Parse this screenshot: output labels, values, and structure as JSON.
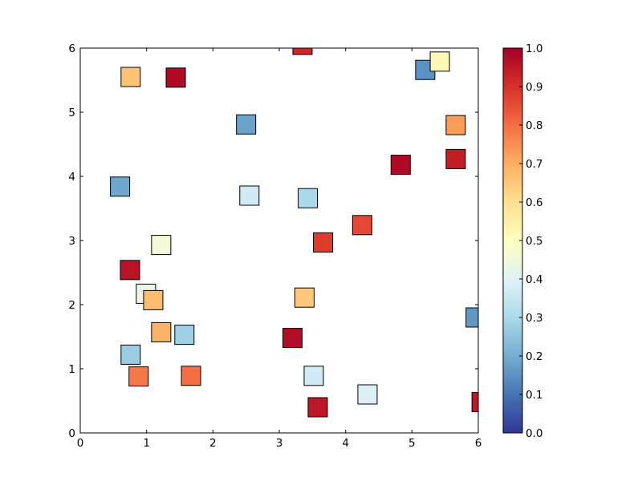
{
  "chart_data": {
    "type": "scatter",
    "marker": "square",
    "title": "",
    "xlabel": "",
    "ylabel": "",
    "xlim": [
      0,
      6
    ],
    "ylim": [
      0,
      6
    ],
    "xticks": [
      "0",
      "1",
      "2",
      "3",
      "4",
      "5",
      "6"
    ],
    "yticks": [
      "0",
      "1",
      "2",
      "3",
      "4",
      "5",
      "6"
    ],
    "grid": false,
    "points": [
      {
        "x": 3.35,
        "y": 6.05,
        "c": 0.92
      },
      {
        "x": 0.76,
        "y": 5.55,
        "c": 0.66
      },
      {
        "x": 1.44,
        "y": 5.54,
        "c": 0.98
      },
      {
        "x": 5.2,
        "y": 5.66,
        "c": 0.15
      },
      {
        "x": 5.42,
        "y": 5.79,
        "c": 0.52
      },
      {
        "x": 2.5,
        "y": 4.81,
        "c": 0.18
      },
      {
        "x": 5.66,
        "y": 4.8,
        "c": 0.73
      },
      {
        "x": 4.83,
        "y": 4.18,
        "c": 0.98
      },
      {
        "x": 5.66,
        "y": 4.27,
        "c": 0.94
      },
      {
        "x": 0.6,
        "y": 3.84,
        "c": 0.19
      },
      {
        "x": 2.55,
        "y": 3.7,
        "c": 0.37
      },
      {
        "x": 3.43,
        "y": 3.66,
        "c": 0.3
      },
      {
        "x": 4.25,
        "y": 3.24,
        "c": 0.86
      },
      {
        "x": 1.22,
        "y": 2.93,
        "c": 0.46
      },
      {
        "x": 3.66,
        "y": 2.97,
        "c": 0.88
      },
      {
        "x": 0.75,
        "y": 2.54,
        "c": 0.96
      },
      {
        "x": 0.99,
        "y": 2.17,
        "c": 0.44
      },
      {
        "x": 1.1,
        "y": 2.07,
        "c": 0.67
      },
      {
        "x": 3.38,
        "y": 2.11,
        "c": 0.65
      },
      {
        "x": 5.96,
        "y": 1.8,
        "c": 0.16
      },
      {
        "x": 1.22,
        "y": 1.57,
        "c": 0.69
      },
      {
        "x": 1.57,
        "y": 1.53,
        "c": 0.28
      },
      {
        "x": 3.2,
        "y": 1.48,
        "c": 0.97
      },
      {
        "x": 0.76,
        "y": 1.22,
        "c": 0.27
      },
      {
        "x": 0.88,
        "y": 0.88,
        "c": 0.78
      },
      {
        "x": 1.67,
        "y": 0.89,
        "c": 0.8
      },
      {
        "x": 3.52,
        "y": 0.89,
        "c": 0.37
      },
      {
        "x": 4.33,
        "y": 0.6,
        "c": 0.39
      },
      {
        "x": 3.58,
        "y": 0.4,
        "c": 0.95
      },
      {
        "x": 6.05,
        "y": 0.48,
        "c": 0.95
      }
    ],
    "colorbar": {
      "colormap": "RdYlBu_r",
      "range": [
        0,
        1
      ],
      "ticks": [
        "0.0",
        "0.1",
        "0.2",
        "0.3",
        "0.4",
        "0.5",
        "0.6",
        "0.7",
        "0.8",
        "0.9",
        "1.0"
      ]
    }
  }
}
